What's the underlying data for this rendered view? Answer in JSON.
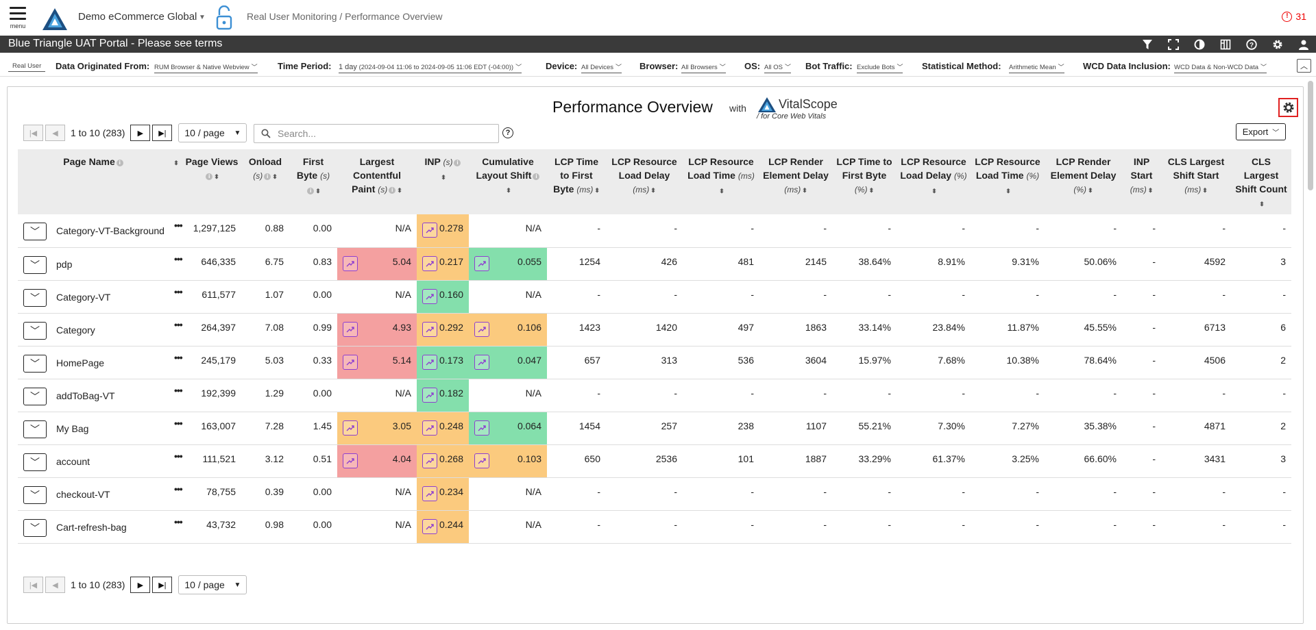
{
  "topbar": {
    "menu_label": "menu",
    "org": "Demo eCommerce Global",
    "breadcrumb": "Real User Monitoring / Performance Overview",
    "alert_count": "31"
  },
  "banner": {
    "title": "Blue Triangle UAT Portal - Please see terms"
  },
  "filters": {
    "segment": "Real User",
    "data_origin_label": "Data Originated From:",
    "data_origin_value": "RUM Browser & Native Webview",
    "time_label": "Time Period:",
    "time_value": "1 day",
    "time_range": "(2024-09-04 11:06 to 2024-09-05 11:06 EDT (-04:00))",
    "device_label": "Device:",
    "device_value": "All Devices",
    "browser_label": "Browser:",
    "browser_value": "All Browsers",
    "os_label": "OS:",
    "os_value": "All OS",
    "bot_label": "Bot Traffic:",
    "bot_value": "Exclude Bots",
    "stat_label": "Statistical Method:",
    "stat_value": "Arithmetic Mean",
    "wcd_label": "WCD Data Inclusion:",
    "wcd_value": "WCD Data & Non-WCD Data"
  },
  "panel": {
    "title": "Performance Overview",
    "with": "with",
    "brand_vital": "Vital",
    "brand_scope": "Scope",
    "brand_sub": "for Core Web Vitals",
    "export_label": "Export",
    "search_placeholder": "Search...",
    "pager_text": "1 to 10 (283)",
    "page_size": "10 / page"
  },
  "columns": [
    {
      "label": "Page Name"
    },
    {
      "label": ""
    },
    {
      "label": "Page Views"
    },
    {
      "label": "Onload",
      "unit": "(s)"
    },
    {
      "label": "First Byte",
      "unit": "(s)"
    },
    {
      "label": "Largest Contentful Paint",
      "unit": "(s)"
    },
    {
      "label": "INP",
      "unit": "(s)"
    },
    {
      "label": "Cumulative Layout Shift"
    },
    {
      "label": "LCP Time to First Byte",
      "unit": "(ms)"
    },
    {
      "label": "LCP Resource Load Delay",
      "unit": "(ms)"
    },
    {
      "label": "LCP Resource Load Time",
      "unit": "(ms)"
    },
    {
      "label": "LCP Render Element Delay",
      "unit": "(ms)"
    },
    {
      "label": "LCP Time to First Byte",
      "unit": "(%)"
    },
    {
      "label": "LCP Resource Load Delay",
      "unit": "(%)"
    },
    {
      "label": "LCP Resource Load Time",
      "unit": "(%)"
    },
    {
      "label": "LCP Render Element Delay",
      "unit": "(%)"
    },
    {
      "label": "INP Start",
      "unit": "(ms)"
    },
    {
      "label": "CLS Largest Shift Start",
      "unit": "(ms)"
    },
    {
      "label": "CLS Largest Shift Count"
    }
  ],
  "rows": [
    {
      "name": "Category-VT-Background",
      "views": "1,297,125",
      "onload": "0.88",
      "fb": "0.00",
      "lcp": "N/A",
      "lcp_c": "",
      "inp": "0.278",
      "inp_c": "orange",
      "cls": "N/A",
      "cls_c": "",
      "m": [
        "-",
        "-",
        "-",
        "-",
        "-",
        "-",
        "-",
        "-",
        "-",
        "-",
        "-"
      ]
    },
    {
      "name": "pdp",
      "views": "646,335",
      "onload": "6.75",
      "fb": "0.83",
      "lcp": "5.04",
      "lcp_c": "red",
      "inp": "0.217",
      "inp_c": "orange",
      "cls": "0.055",
      "cls_c": "green",
      "m": [
        "1254",
        "426",
        "481",
        "2145",
        "38.64%",
        "8.91%",
        "9.31%",
        "50.06%",
        "-",
        "4592",
        "3"
      ]
    },
    {
      "name": "Category-VT",
      "views": "611,577",
      "onload": "1.07",
      "fb": "0.00",
      "lcp": "N/A",
      "lcp_c": "",
      "inp": "0.160",
      "inp_c": "green",
      "cls": "N/A",
      "cls_c": "",
      "m": [
        "-",
        "-",
        "-",
        "-",
        "-",
        "-",
        "-",
        "-",
        "-",
        "-",
        "-"
      ]
    },
    {
      "name": "Category",
      "views": "264,397",
      "onload": "7.08",
      "fb": "0.99",
      "lcp": "4.93",
      "lcp_c": "red",
      "inp": "0.292",
      "inp_c": "orange",
      "cls": "0.106",
      "cls_c": "orange",
      "m": [
        "1423",
        "1420",
        "497",
        "1863",
        "33.14%",
        "23.84%",
        "11.87%",
        "45.55%",
        "-",
        "6713",
        "6"
      ]
    },
    {
      "name": "HomePage",
      "views": "245,179",
      "onload": "5.03",
      "fb": "0.33",
      "lcp": "5.14",
      "lcp_c": "red",
      "inp": "0.173",
      "inp_c": "green",
      "cls": "0.047",
      "cls_c": "green",
      "m": [
        "657",
        "313",
        "536",
        "3604",
        "15.97%",
        "7.68%",
        "10.38%",
        "78.64%",
        "-",
        "4506",
        "2"
      ]
    },
    {
      "name": "addToBag-VT",
      "views": "192,399",
      "onload": "1.29",
      "fb": "0.00",
      "lcp": "N/A",
      "lcp_c": "",
      "inp": "0.182",
      "inp_c": "green",
      "cls": "N/A",
      "cls_c": "",
      "m": [
        "-",
        "-",
        "-",
        "-",
        "-",
        "-",
        "-",
        "-",
        "-",
        "-",
        "-"
      ]
    },
    {
      "name": "My Bag",
      "views": "163,007",
      "onload": "7.28",
      "fb": "1.45",
      "lcp": "3.05",
      "lcp_c": "orange",
      "inp": "0.248",
      "inp_c": "orange",
      "cls": "0.064",
      "cls_c": "green",
      "m": [
        "1454",
        "257",
        "238",
        "1107",
        "55.21%",
        "7.30%",
        "7.27%",
        "35.38%",
        "-",
        "4871",
        "2"
      ]
    },
    {
      "name": "account",
      "views": "111,521",
      "onload": "3.12",
      "fb": "0.51",
      "lcp": "4.04",
      "lcp_c": "red",
      "inp": "0.268",
      "inp_c": "orange",
      "cls": "0.103",
      "cls_c": "orange",
      "m": [
        "650",
        "2536",
        "101",
        "1887",
        "33.29%",
        "61.37%",
        "3.25%",
        "66.60%",
        "-",
        "3431",
        "3"
      ]
    },
    {
      "name": "checkout-VT",
      "views": "78,755",
      "onload": "0.39",
      "fb": "0.00",
      "lcp": "N/A",
      "lcp_c": "",
      "inp": "0.234",
      "inp_c": "orange",
      "cls": "N/A",
      "cls_c": "",
      "m": [
        "-",
        "-",
        "-",
        "-",
        "-",
        "-",
        "-",
        "-",
        "-",
        "-",
        "-"
      ]
    },
    {
      "name": "Cart-refresh-bag",
      "views": "43,732",
      "onload": "0.98",
      "fb": "0.00",
      "lcp": "N/A",
      "lcp_c": "",
      "inp": "0.244",
      "inp_c": "orange",
      "cls": "N/A",
      "cls_c": "",
      "m": [
        "-",
        "-",
        "-",
        "-",
        "-",
        "-",
        "-",
        "-",
        "-",
        "-",
        "-"
      ]
    }
  ]
}
